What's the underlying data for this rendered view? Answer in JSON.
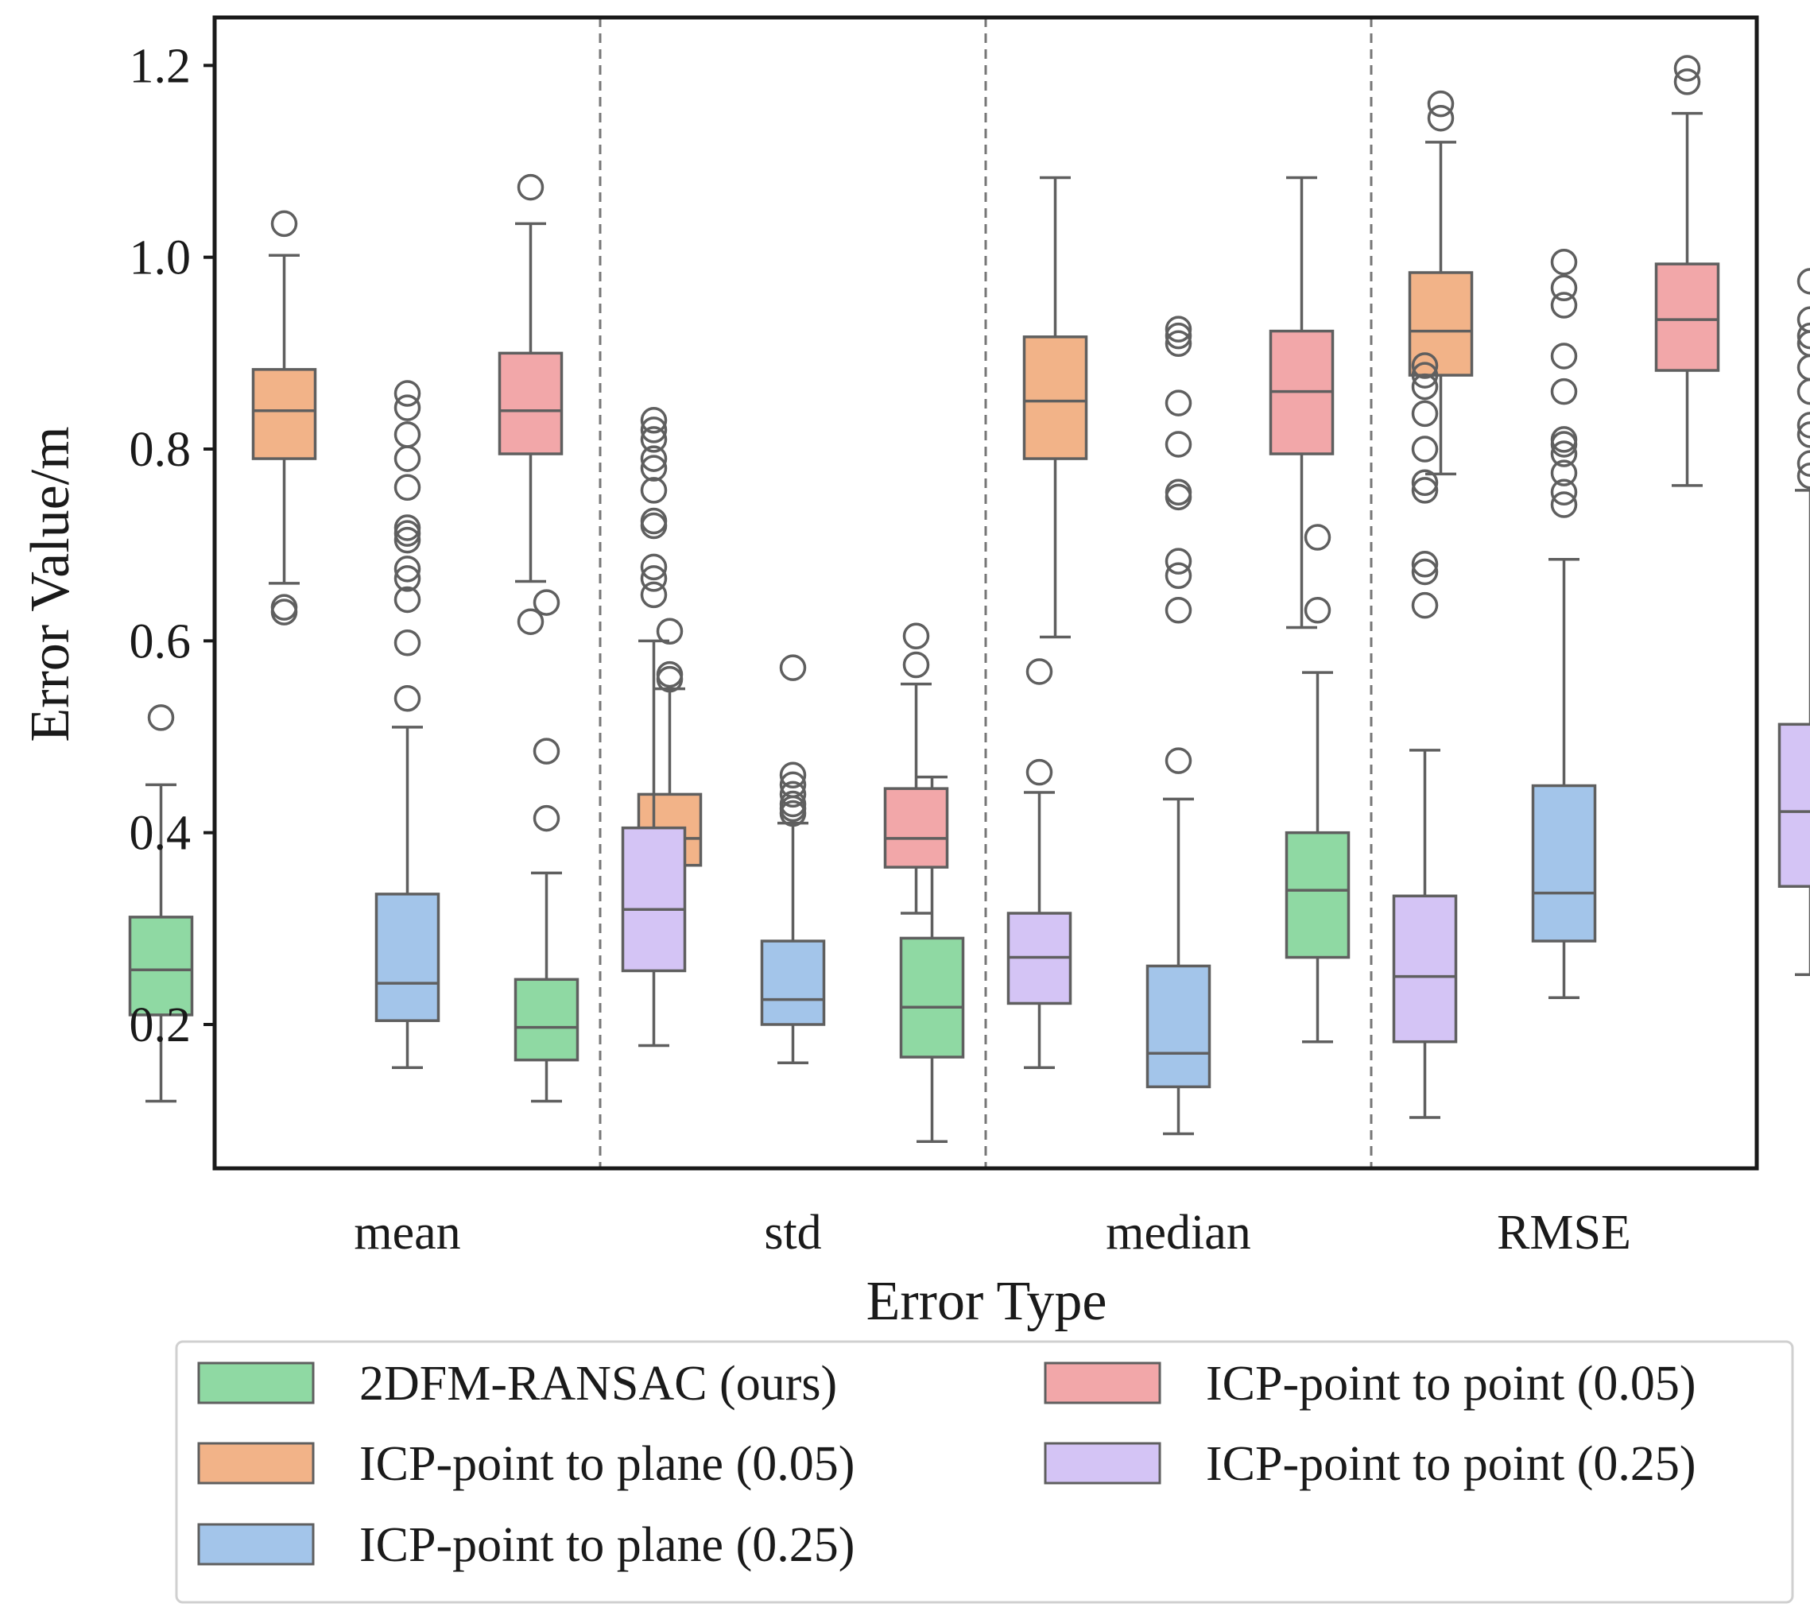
{
  "chart_data": {
    "type": "box",
    "xlabel": "Error Type",
    "ylabel": "Error Value/m",
    "categories": [
      "mean",
      "std",
      "median",
      "RMSE"
    ],
    "ylim": [
      0.05,
      1.25
    ],
    "yticks": [
      "0.2",
      "0.4",
      "0.6",
      "0.8",
      "1.0",
      "1.2"
    ],
    "grid": false,
    "category_separators": "dashed vertical lines",
    "legend_placement": "below plot, two columns",
    "series": [
      {
        "name": "2DFM-RANSAC (ours)",
        "color": "#8fd9a3",
        "boxes": [
          {
            "whislo": 0.12,
            "q1": 0.21,
            "med": 0.257,
            "q3": 0.312,
            "whishi": 0.45,
            "fliers": [
              0.52
            ]
          },
          {
            "whislo": 0.12,
            "q1": 0.163,
            "med": 0.197,
            "q3": 0.247,
            "whishi": 0.358,
            "fliers": [
              0.415,
              0.485,
              0.64
            ]
          },
          {
            "whislo": 0.078,
            "q1": 0.166,
            "med": 0.218,
            "q3": 0.29,
            "whishi": 0.458,
            "fliers": []
          },
          {
            "whislo": 0.182,
            "q1": 0.27,
            "med": 0.34,
            "q3": 0.4,
            "whishi": 0.567,
            "fliers": [
              0.632,
              0.708
            ]
          }
        ]
      },
      {
        "name": "ICP-point to plane (0.05)",
        "color": "#f2b388",
        "boxes": [
          {
            "whislo": 0.66,
            "q1": 0.79,
            "med": 0.84,
            "q3": 0.883,
            "whishi": 1.002,
            "fliers": [
              0.63,
              0.635,
              1.035
            ]
          },
          {
            "whislo": 0.32,
            "q1": 0.366,
            "med": 0.394,
            "q3": 0.44,
            "whishi": 0.55,
            "fliers": [
              0.56,
              0.565,
              0.61
            ]
          },
          {
            "whislo": 0.604,
            "q1": 0.79,
            "med": 0.85,
            "q3": 0.917,
            "whishi": 1.083,
            "fliers": []
          },
          {
            "whislo": 0.774,
            "q1": 0.877,
            "med": 0.923,
            "q3": 0.984,
            "whishi": 1.12,
            "fliers": [
              1.145,
              1.16
            ]
          }
        ]
      },
      {
        "name": "ICP-point to plane (0.25)",
        "color": "#a3c5ea",
        "boxes": [
          {
            "whislo": 0.155,
            "q1": 0.204,
            "med": 0.243,
            "q3": 0.336,
            "whishi": 0.51,
            "fliers": [
              0.54,
              0.598,
              0.643,
              0.665,
              0.675,
              0.705,
              0.712,
              0.718,
              0.76,
              0.79,
              0.815,
              0.843,
              0.858
            ]
          },
          {
            "whislo": 0.16,
            "q1": 0.2,
            "med": 0.226,
            "q3": 0.287,
            "whishi": 0.41,
            "fliers": [
              0.42,
              0.425,
              0.43,
              0.44,
              0.45,
              0.46,
              0.572
            ]
          },
          {
            "whislo": 0.086,
            "q1": 0.135,
            "med": 0.17,
            "q3": 0.261,
            "whishi": 0.435,
            "fliers": [
              0.475,
              0.632,
              0.668,
              0.683,
              0.75,
              0.755,
              0.805,
              0.848,
              0.91,
              0.918,
              0.925
            ]
          },
          {
            "whislo": 0.228,
            "q1": 0.287,
            "med": 0.337,
            "q3": 0.449,
            "whishi": 0.685,
            "fliers": [
              0.742,
              0.755,
              0.775,
              0.795,
              0.805,
              0.81,
              0.86,
              0.897,
              0.95,
              0.968,
              0.995
            ]
          }
        ]
      },
      {
        "name": "ICP-point to point (0.05)",
        "color": "#f2a7a9",
        "boxes": [
          {
            "whislo": 0.662,
            "q1": 0.795,
            "med": 0.84,
            "q3": 0.9,
            "whishi": 1.035,
            "fliers": [
              0.62,
              1.073
            ]
          },
          {
            "whislo": 0.316,
            "q1": 0.364,
            "med": 0.394,
            "q3": 0.446,
            "whishi": 0.555,
            "fliers": [
              0.575,
              0.605
            ]
          },
          {
            "whislo": 0.614,
            "q1": 0.795,
            "med": 0.86,
            "q3": 0.923,
            "whishi": 1.083,
            "fliers": []
          },
          {
            "whislo": 0.762,
            "q1": 0.882,
            "med": 0.935,
            "q3": 0.993,
            "whishi": 1.15,
            "fliers": [
              1.183,
              1.197
            ]
          }
        ]
      },
      {
        "name": "ICP-point to point (0.25)",
        "color": "#d4c4f5",
        "boxes": [
          {
            "whislo": 0.178,
            "q1": 0.256,
            "med": 0.32,
            "q3": 0.405,
            "whishi": 0.6,
            "fliers": [
              0.648,
              0.665,
              0.677,
              0.72,
              0.725,
              0.757,
              0.78,
              0.79,
              0.81,
              0.82,
              0.83
            ]
          },
          {
            "whislo": 0.155,
            "q1": 0.222,
            "med": 0.27,
            "q3": 0.316,
            "whishi": 0.442,
            "fliers": [
              0.463,
              0.568
            ]
          },
          {
            "whislo": 0.103,
            "q1": 0.182,
            "med": 0.25,
            "q3": 0.334,
            "whishi": 0.486,
            "fliers": [
              0.637,
              0.672,
              0.68,
              0.757,
              0.765,
              0.8,
              0.837,
              0.865,
              0.877,
              0.887
            ]
          },
          {
            "whislo": 0.252,
            "q1": 0.344,
            "med": 0.422,
            "q3": 0.513,
            "whishi": 0.757,
            "fliers": [
              0.772,
              0.785,
              0.815,
              0.825,
              0.86,
              0.885,
              0.91,
              0.918,
              0.935,
              0.975
            ]
          }
        ]
      }
    ]
  }
}
